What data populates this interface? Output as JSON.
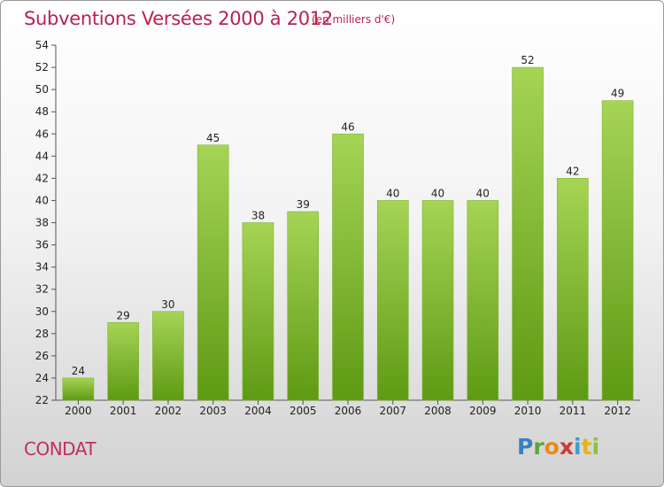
{
  "header": {
    "title": "Subventions Versées 2000 à 2012",
    "subtitle": "(en milliers d'€)"
  },
  "footer": {
    "town": "CONDAT",
    "logo_text": "Proxiti"
  },
  "colors": {
    "title": "#b8234e",
    "bar_light": "#a6d455",
    "bar_dark": "#5e9a14",
    "text": "#222222"
  },
  "chart_data": {
    "type": "bar",
    "title": "Subventions Versées 2000 à 2012",
    "subtitle": "(en milliers d'€)",
    "xlabel": "",
    "ylabel": "",
    "categories": [
      "2000",
      "2001",
      "2002",
      "2003",
      "2004",
      "2005",
      "2006",
      "2007",
      "2008",
      "2009",
      "2010",
      "2011",
      "2012"
    ],
    "values": [
      24,
      29,
      30,
      45,
      38,
      39,
      46,
      40,
      40,
      40,
      52,
      42,
      49
    ],
    "ylim": [
      22,
      54
    ],
    "yticks": [
      22,
      24,
      26,
      28,
      30,
      32,
      34,
      36,
      38,
      40,
      42,
      44,
      46,
      48,
      50,
      52,
      54
    ],
    "grid": false,
    "legend": "none"
  }
}
